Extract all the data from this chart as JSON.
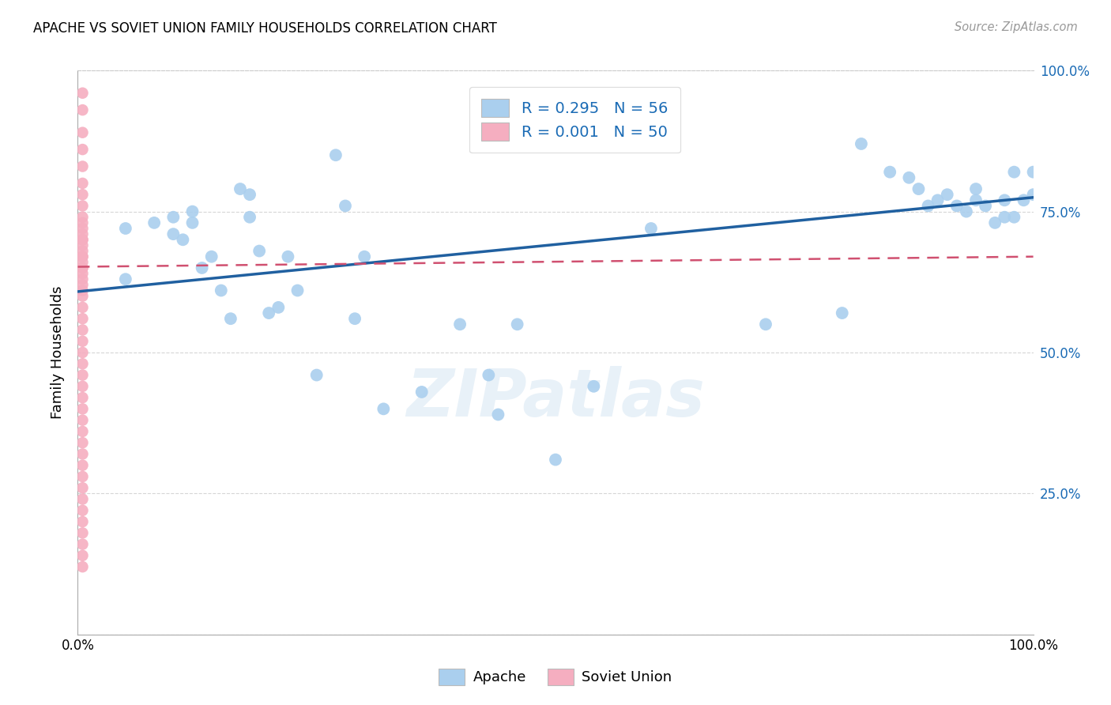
{
  "title": "APACHE VS SOVIET UNION FAMILY HOUSEHOLDS CORRELATION CHART",
  "source": "Source: ZipAtlas.com",
  "ylabel": "Family Households",
  "xlim": [
    0,
    1
  ],
  "ylim": [
    0,
    1
  ],
  "apache_color": "#aacfee",
  "soviet_color": "#f5aec0",
  "apache_line_color": "#2060a0",
  "soviet_line_color": "#d05070",
  "legend_text_color": "#1a6bb5",
  "watermark_text": "ZIPatlas",
  "legend_line1": "R = 0.295   N = 56",
  "legend_line2": "R = 0.001   N = 50",
  "apache_scatter_x": [
    0.05,
    0.05,
    0.08,
    0.1,
    0.1,
    0.11,
    0.12,
    0.12,
    0.13,
    0.14,
    0.15,
    0.16,
    0.17,
    0.18,
    0.18,
    0.19,
    0.2,
    0.21,
    0.22,
    0.23,
    0.25,
    0.27,
    0.28,
    0.29,
    0.3,
    0.32,
    0.36,
    0.4,
    0.43,
    0.44,
    0.46,
    0.5,
    0.54,
    0.6,
    0.72,
    0.8,
    0.82,
    0.85,
    0.87,
    0.88,
    0.89,
    0.9,
    0.91,
    0.92,
    0.93,
    0.94,
    0.94,
    0.95,
    0.96,
    0.97,
    0.97,
    0.98,
    0.98,
    0.99,
    1.0,
    1.0
  ],
  "apache_scatter_y": [
    0.63,
    0.72,
    0.73,
    0.71,
    0.74,
    0.7,
    0.73,
    0.75,
    0.65,
    0.67,
    0.61,
    0.56,
    0.79,
    0.78,
    0.74,
    0.68,
    0.57,
    0.58,
    0.67,
    0.61,
    0.46,
    0.85,
    0.76,
    0.56,
    0.67,
    0.4,
    0.43,
    0.55,
    0.46,
    0.39,
    0.55,
    0.31,
    0.44,
    0.72,
    0.55,
    0.57,
    0.87,
    0.82,
    0.81,
    0.79,
    0.76,
    0.77,
    0.78,
    0.76,
    0.75,
    0.79,
    0.77,
    0.76,
    0.73,
    0.74,
    0.77,
    0.74,
    0.82,
    0.77,
    0.82,
    0.78
  ],
  "soviet_scatter_x": [
    0.005,
    0.005,
    0.005,
    0.005,
    0.005,
    0.005,
    0.005,
    0.005,
    0.005,
    0.005,
    0.005,
    0.005,
    0.005,
    0.005,
    0.005,
    0.005,
    0.005,
    0.005,
    0.005,
    0.005,
    0.005,
    0.005,
    0.005,
    0.005,
    0.005,
    0.005,
    0.005,
    0.005,
    0.005,
    0.005,
    0.005,
    0.005,
    0.005,
    0.005,
    0.005,
    0.005,
    0.005,
    0.005,
    0.005,
    0.005,
    0.005,
    0.005,
    0.005,
    0.005,
    0.005,
    0.005,
    0.005,
    0.005,
    0.005,
    0.005
  ],
  "soviet_scatter_y": [
    0.96,
    0.93,
    0.89,
    0.86,
    0.83,
    0.8,
    0.78,
    0.76,
    0.74,
    0.73,
    0.72,
    0.71,
    0.7,
    0.7,
    0.69,
    0.68,
    0.67,
    0.67,
    0.66,
    0.65,
    0.65,
    0.64,
    0.63,
    0.62,
    0.61,
    0.6,
    0.58,
    0.56,
    0.54,
    0.52,
    0.5,
    0.48,
    0.46,
    0.44,
    0.42,
    0.4,
    0.38,
    0.36,
    0.34,
    0.32,
    0.3,
    0.28,
    0.26,
    0.24,
    0.22,
    0.2,
    0.18,
    0.16,
    0.14,
    0.12
  ],
  "apache_trend_x": [
    0.0,
    1.0
  ],
  "apache_trend_y": [
    0.608,
    0.775
  ],
  "soviet_trend_x": [
    0.0,
    1.0
  ],
  "soviet_trend_y": [
    0.652,
    0.67
  ]
}
